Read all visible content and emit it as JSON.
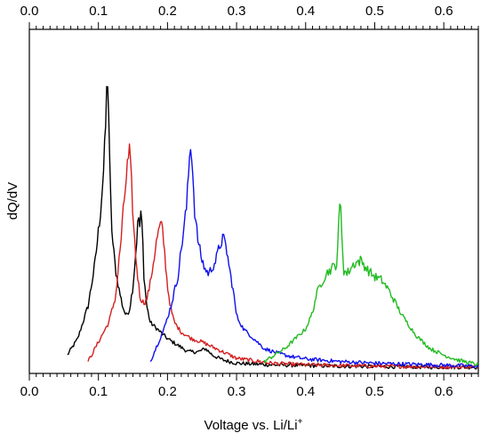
{
  "chart_data": {
    "type": "line",
    "xlabel": "Voltage vs. Li/Li",
    "xlabel_superscript": "+",
    "ylabel": "dQ/dV",
    "xlim": [
      0.0,
      0.65
    ],
    "ylim": [
      0,
      1
    ],
    "x_ticks": [
      "0.0",
      "0.1",
      "0.2",
      "0.3",
      "0.4",
      "0.5",
      "0.6"
    ],
    "x_ticks_top": [
      "0.0",
      "0.1",
      "0.2",
      "0.3",
      "0.4",
      "0.5",
      "0.6"
    ],
    "grid": false,
    "legend": "none",
    "y_tick_labels": "none",
    "series": [
      {
        "color": "#000000",
        "x": [
          0.055,
          0.07,
          0.085,
          0.095,
          0.103,
          0.108,
          0.111,
          0.113,
          0.115,
          0.117,
          0.12,
          0.125,
          0.13,
          0.135,
          0.14,
          0.145,
          0.15,
          0.155,
          0.158,
          0.16,
          0.162,
          0.164,
          0.166,
          0.17,
          0.175,
          0.185,
          0.2,
          0.215,
          0.23,
          0.245,
          0.255,
          0.265,
          0.28,
          0.3,
          0.35,
          0.4,
          0.45,
          0.5,
          0.55,
          0.6,
          0.65
        ],
        "y": [
          0.04,
          0.09,
          0.19,
          0.32,
          0.48,
          0.62,
          0.77,
          0.92,
          0.77,
          0.55,
          0.4,
          0.3,
          0.24,
          0.19,
          0.16,
          0.18,
          0.25,
          0.38,
          0.47,
          0.43,
          0.48,
          0.4,
          0.28,
          0.19,
          0.14,
          0.12,
          0.09,
          0.07,
          0.05,
          0.05,
          0.06,
          0.04,
          0.025,
          0.015,
          0.01,
          0.008,
          0.006,
          0.005,
          0.004,
          0.003,
          0.003
        ]
      },
      {
        "color": "#d42020",
        "x": [
          0.085,
          0.1,
          0.115,
          0.125,
          0.133,
          0.138,
          0.142,
          0.145,
          0.148,
          0.151,
          0.155,
          0.16,
          0.165,
          0.17,
          0.175,
          0.18,
          0.185,
          0.19,
          0.193,
          0.196,
          0.2,
          0.205,
          0.21,
          0.22,
          0.235,
          0.25,
          0.26,
          0.27,
          0.28,
          0.3,
          0.35,
          0.4,
          0.45,
          0.5,
          0.55,
          0.6,
          0.65
        ],
        "y": [
          0.02,
          0.08,
          0.14,
          0.22,
          0.4,
          0.53,
          0.62,
          0.66,
          0.56,
          0.43,
          0.32,
          0.22,
          0.2,
          0.21,
          0.26,
          0.33,
          0.4,
          0.44,
          0.42,
          0.35,
          0.25,
          0.18,
          0.14,
          0.11,
          0.09,
          0.08,
          0.07,
          0.06,
          0.05,
          0.03,
          0.015,
          0.01,
          0.008,
          0.006,
          0.005,
          0.004,
          0.004
        ]
      },
      {
        "color": "#1010ee",
        "x": [
          0.175,
          0.185,
          0.195,
          0.205,
          0.215,
          0.222,
          0.228,
          0.231,
          0.234,
          0.237,
          0.24,
          0.245,
          0.25,
          0.255,
          0.26,
          0.265,
          0.27,
          0.275,
          0.28,
          0.285,
          0.29,
          0.295,
          0.3,
          0.31,
          0.32,
          0.33,
          0.34,
          0.36,
          0.38,
          0.4,
          0.45,
          0.5,
          0.55,
          0.6,
          0.65
        ],
        "y": [
          0.02,
          0.07,
          0.12,
          0.19,
          0.28,
          0.4,
          0.5,
          0.62,
          0.7,
          0.58,
          0.46,
          0.38,
          0.33,
          0.3,
          0.29,
          0.31,
          0.33,
          0.37,
          0.4,
          0.37,
          0.3,
          0.24,
          0.16,
          0.12,
          0.1,
          0.08,
          0.06,
          0.045,
          0.035,
          0.028,
          0.02,
          0.015,
          0.012,
          0.009,
          0.006
        ]
      },
      {
        "color": "#22bb22",
        "x": [
          0.34,
          0.355,
          0.37,
          0.385,
          0.4,
          0.41,
          0.415,
          0.42,
          0.425,
          0.43,
          0.435,
          0.44,
          0.445,
          0.45,
          0.455,
          0.46,
          0.47,
          0.48,
          0.49,
          0.5,
          0.51,
          0.52,
          0.53,
          0.54,
          0.55,
          0.56,
          0.57,
          0.58,
          0.6,
          0.62,
          0.65
        ],
        "y": [
          0.02,
          0.04,
          0.06,
          0.09,
          0.12,
          0.17,
          0.22,
          0.25,
          0.27,
          0.29,
          0.3,
          0.31,
          0.32,
          0.52,
          0.3,
          0.29,
          0.32,
          0.33,
          0.3,
          0.28,
          0.27,
          0.24,
          0.2,
          0.16,
          0.13,
          0.1,
          0.08,
          0.06,
          0.04,
          0.025,
          0.01
        ]
      }
    ]
  }
}
